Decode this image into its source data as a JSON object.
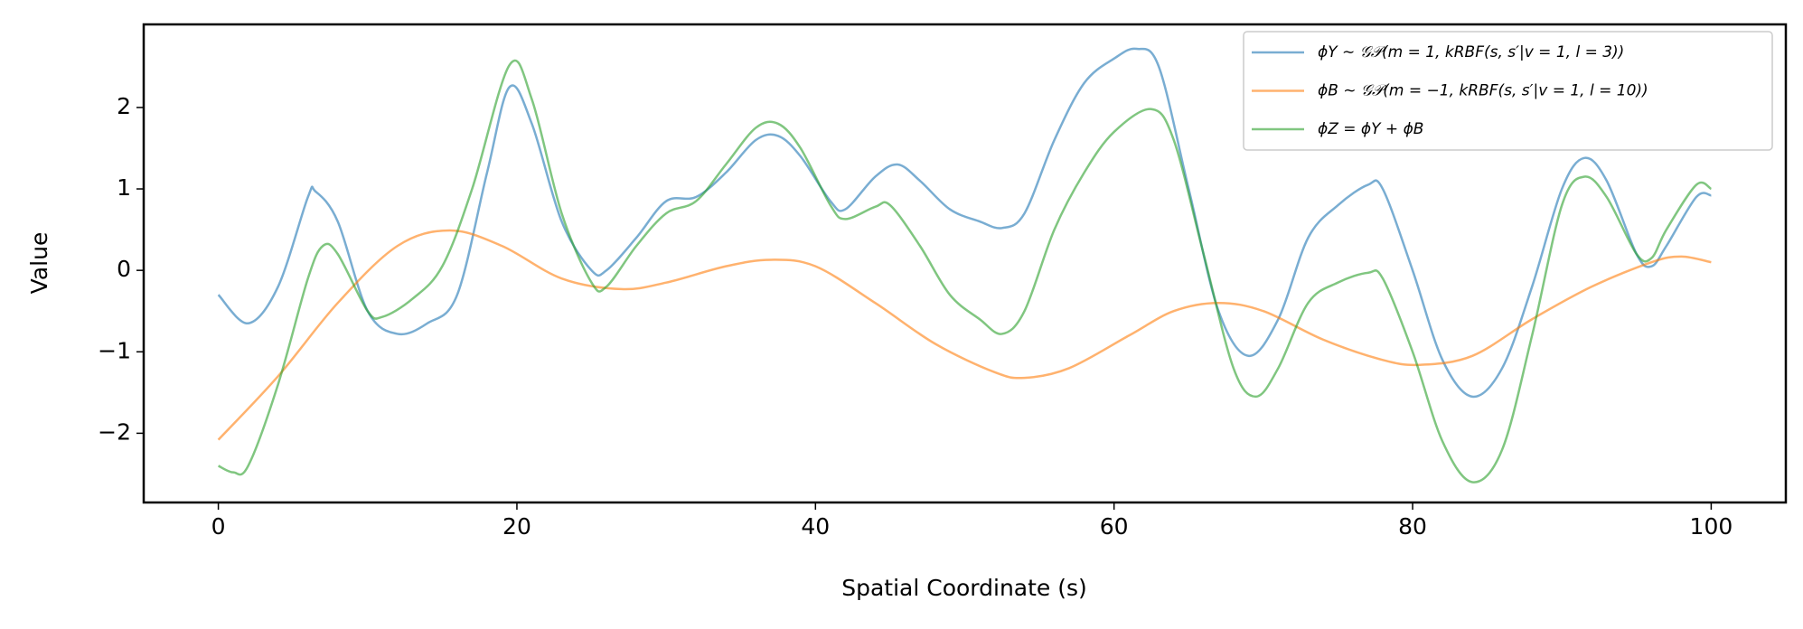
{
  "chart_data": {
    "type": "line",
    "xlabel": "Spatial Coordinate (s)",
    "ylabel": "Value",
    "xlim": [
      -5,
      105
    ],
    "ylim": [
      -2.85,
      3.02
    ],
    "xticks": [
      0,
      20,
      40,
      60,
      80,
      100
    ],
    "yticks": [
      {
        "value": -2,
        "label": "−2"
      },
      {
        "value": -1,
        "label": "−1"
      },
      0,
      1,
      2
    ],
    "alpha": 0.6,
    "legend": "upper right",
    "series": [
      {
        "name": "ϕY ∼ 𝒢𝒫(m = 1, kRBF(s, s′|v = 1, l = 3))",
        "color": "#1f77b4",
        "x": [
          0,
          2,
          4,
          6,
          6.5,
          8,
          10,
          12,
          14,
          16,
          18,
          19.5,
          21,
          23,
          25,
          26,
          28,
          30,
          32,
          34,
          36,
          37.5,
          39,
          41,
          42,
          44,
          45.5,
          47,
          49,
          51,
          52.5,
          54,
          56,
          58,
          60,
          61.5,
          63,
          65,
          67,
          69,
          71,
          73,
          75,
          77,
          78,
          80,
          82,
          84,
          86,
          88,
          90,
          91.5,
          93,
          95,
          96,
          97,
          99,
          100
        ],
        "values": [
          -0.3,
          -0.65,
          -0.2,
          0.9,
          0.97,
          0.6,
          -0.5,
          -0.78,
          -0.65,
          -0.3,
          1.2,
          2.25,
          1.8,
          0.6,
          0.0,
          0.0,
          0.4,
          0.85,
          0.9,
          1.2,
          1.6,
          1.65,
          1.4,
          0.85,
          0.75,
          1.15,
          1.3,
          1.1,
          0.75,
          0.6,
          0.52,
          0.7,
          1.6,
          2.3,
          2.6,
          2.72,
          2.5,
          1.0,
          -0.5,
          -1.05,
          -0.6,
          0.4,
          0.8,
          1.05,
          1.0,
          0.0,
          -1.1,
          -1.55,
          -1.2,
          -0.2,
          1.0,
          1.38,
          1.1,
          0.2,
          0.05,
          0.3,
          0.9,
          0.92
        ]
      },
      {
        "name": "ϕB ∼ 𝒢𝒫(m = −1, kRBF(s, s′|v = 1, l = 10))",
        "color": "#ff7f0e",
        "x": [
          0,
          4,
          8,
          12,
          15.5,
          19,
          23,
          27,
          30,
          34,
          37,
          40,
          44,
          48,
          52,
          54,
          57,
          61,
          64,
          67,
          70,
          74,
          78,
          80.5,
          84,
          88,
          92,
          96,
          98,
          100
        ],
        "values": [
          -2.08,
          -1.3,
          -0.4,
          0.3,
          0.49,
          0.3,
          -0.1,
          -0.23,
          -0.15,
          0.05,
          0.13,
          0.05,
          -0.4,
          -0.9,
          -1.25,
          -1.32,
          -1.2,
          -0.8,
          -0.5,
          -0.4,
          -0.5,
          -0.85,
          -1.1,
          -1.16,
          -1.05,
          -0.6,
          -0.2,
          0.1,
          0.17,
          0.1
        ]
      },
      {
        "name": "ϕZ = ϕY + ϕB",
        "color": "#2ca02c",
        "x": [
          0,
          1,
          2,
          4,
          6,
          7,
          8,
          10,
          11,
          13,
          15,
          17,
          19.5,
          21,
          23,
          25,
          26,
          28,
          30,
          32,
          34,
          36,
          37.5,
          39,
          41,
          42,
          44,
          45,
          47,
          49,
          51,
          52.5,
          54,
          56,
          58,
          60,
          62.5,
          64,
          66,
          68,
          69.5,
          71,
          73,
          75,
          77,
          78,
          80,
          82,
          84,
          86,
          88,
          90,
          91.5,
          93,
          95,
          96,
          97,
          99,
          100
        ],
        "values": [
          -2.4,
          -2.48,
          -2.4,
          -1.4,
          -0.1,
          0.3,
          0.2,
          -0.5,
          -0.57,
          -0.35,
          0.05,
          1.0,
          2.52,
          2.1,
          0.7,
          -0.15,
          -0.2,
          0.3,
          0.7,
          0.85,
          1.3,
          1.75,
          1.8,
          1.5,
          0.8,
          0.63,
          0.78,
          0.8,
          0.3,
          -0.3,
          -0.6,
          -0.78,
          -0.5,
          0.5,
          1.2,
          1.7,
          1.98,
          1.6,
          0.2,
          -1.2,
          -1.55,
          -1.2,
          -0.4,
          -0.15,
          -0.03,
          -0.1,
          -1.0,
          -2.1,
          -2.6,
          -2.2,
          -0.8,
          0.8,
          1.15,
          0.9,
          0.2,
          0.15,
          0.5,
          1.05,
          1.0
        ]
      }
    ]
  }
}
